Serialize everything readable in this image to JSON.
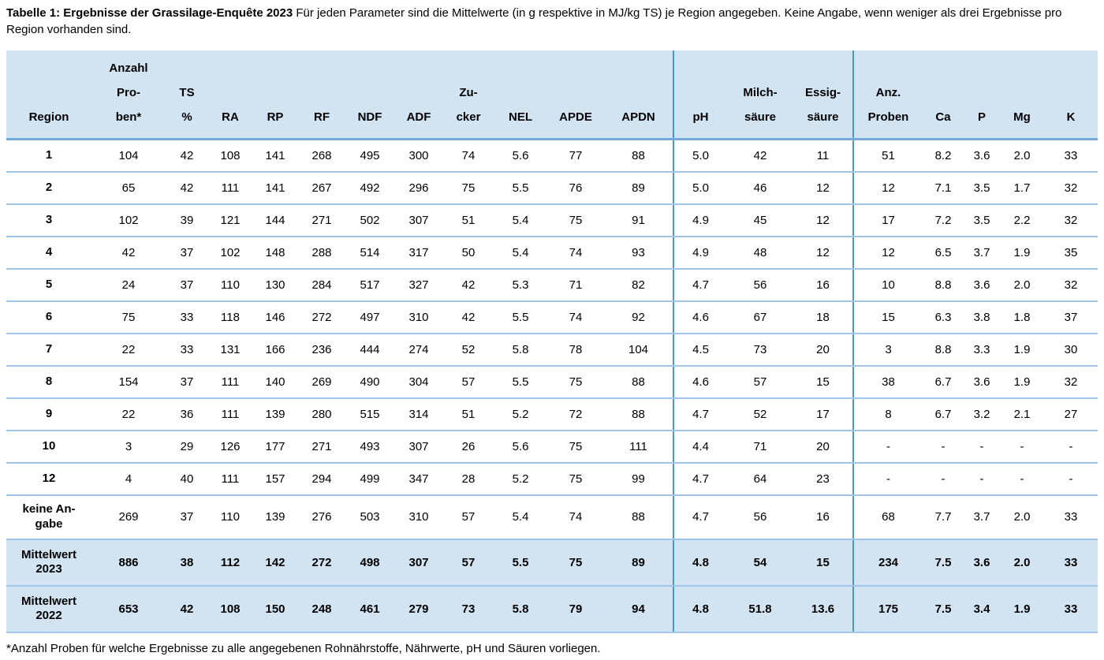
{
  "caption": {
    "bold": "Tabelle 1: Ergebnisse der Grassilage-Enquête 2023",
    "text": " Für jeden Parameter sind die Mittelwerte (in g respektive in MJ/kg TS) je Region angegeben. Keine Angabe, wenn weniger als drei Ergebnisse pro Region vorhanden sind."
  },
  "colors": {
    "header_bg": "#d2e4f2",
    "highlight_bg": "#d2e4f2",
    "row_separator": "#9fc5e8",
    "header_underline": "#74aad9",
    "group_divider": "#4e96d2"
  },
  "table": {
    "columns": [
      {
        "key": "region",
        "lines": [
          "Region"
        ]
      },
      {
        "key": "anzahl-proben",
        "lines": [
          "Anzahl",
          "Pro-",
          "ben*"
        ]
      },
      {
        "key": "ts-prozent",
        "lines": [
          "TS",
          "%"
        ]
      },
      {
        "key": "ra",
        "lines": [
          "RA"
        ]
      },
      {
        "key": "rp",
        "lines": [
          "RP"
        ]
      },
      {
        "key": "rf",
        "lines": [
          "RF"
        ]
      },
      {
        "key": "ndf",
        "lines": [
          "NDF"
        ]
      },
      {
        "key": "adf",
        "lines": [
          "ADF"
        ]
      },
      {
        "key": "zucker",
        "lines": [
          "Zu-",
          "cker"
        ]
      },
      {
        "key": "nel",
        "lines": [
          "NEL"
        ]
      },
      {
        "key": "apde",
        "lines": [
          "APDE"
        ]
      },
      {
        "key": "apdn",
        "lines": [
          "APDN"
        ]
      },
      {
        "key": "ph",
        "lines": [
          "pH"
        ],
        "group_start": true
      },
      {
        "key": "milchsaeure",
        "lines": [
          "Milch-",
          "säure"
        ]
      },
      {
        "key": "essigsaeure",
        "lines": [
          "Essig-",
          "säure"
        ]
      },
      {
        "key": "anz-proben",
        "lines": [
          "Anz.",
          "Proben"
        ],
        "group_start": true
      },
      {
        "key": "ca",
        "lines": [
          "Ca"
        ]
      },
      {
        "key": "p",
        "lines": [
          "P"
        ]
      },
      {
        "key": "mg",
        "lines": [
          "Mg"
        ]
      },
      {
        "key": "k",
        "lines": [
          "K"
        ]
      }
    ],
    "rows": [
      {
        "label_lines": [
          "1"
        ],
        "highlight": false,
        "values": [
          "104",
          "42",
          "108",
          "141",
          "268",
          "495",
          "300",
          "74",
          "5.6",
          "77",
          "88",
          "5.0",
          "42",
          "11",
          "51",
          "8.2",
          "3.6",
          "2.0",
          "33"
        ]
      },
      {
        "label_lines": [
          "2"
        ],
        "highlight": false,
        "values": [
          "65",
          "42",
          "111",
          "141",
          "267",
          "492",
          "296",
          "75",
          "5.5",
          "76",
          "89",
          "5.0",
          "46",
          "12",
          "12",
          "7.1",
          "3.5",
          "1.7",
          "32"
        ]
      },
      {
        "label_lines": [
          "3"
        ],
        "highlight": false,
        "values": [
          "102",
          "39",
          "121",
          "144",
          "271",
          "502",
          "307",
          "51",
          "5.4",
          "75",
          "91",
          "4.9",
          "45",
          "12",
          "17",
          "7.2",
          "3.5",
          "2.2",
          "32"
        ]
      },
      {
        "label_lines": [
          "4"
        ],
        "highlight": false,
        "values": [
          "42",
          "37",
          "102",
          "148",
          "288",
          "514",
          "317",
          "50",
          "5.4",
          "74",
          "93",
          "4.9",
          "48",
          "12",
          "12",
          "6.5",
          "3.7",
          "1.9",
          "35"
        ]
      },
      {
        "label_lines": [
          "5"
        ],
        "highlight": false,
        "values": [
          "24",
          "37",
          "110",
          "130",
          "284",
          "517",
          "327",
          "42",
          "5.3",
          "71",
          "82",
          "4.7",
          "56",
          "16",
          "10",
          "8.8",
          "3.6",
          "2.0",
          "32"
        ]
      },
      {
        "label_lines": [
          "6"
        ],
        "highlight": false,
        "values": [
          "75",
          "33",
          "118",
          "146",
          "272",
          "497",
          "310",
          "42",
          "5.5",
          "74",
          "92",
          "4.6",
          "67",
          "18",
          "15",
          "6.3",
          "3.8",
          "1.8",
          "37"
        ]
      },
      {
        "label_lines": [
          "7"
        ],
        "highlight": false,
        "values": [
          "22",
          "33",
          "131",
          "166",
          "236",
          "444",
          "274",
          "52",
          "5.8",
          "78",
          "104",
          "4.5",
          "73",
          "20",
          "3",
          "8.8",
          "3.3",
          "1.9",
          "30"
        ]
      },
      {
        "label_lines": [
          "8"
        ],
        "highlight": false,
        "values": [
          "154",
          "37",
          "111",
          "140",
          "269",
          "490",
          "304",
          "57",
          "5.5",
          "75",
          "88",
          "4.6",
          "57",
          "15",
          "38",
          "6.7",
          "3.6",
          "1.9",
          "32"
        ]
      },
      {
        "label_lines": [
          "9"
        ],
        "highlight": false,
        "values": [
          "22",
          "36",
          "111",
          "139",
          "280",
          "515",
          "314",
          "51",
          "5.2",
          "72",
          "88",
          "4.7",
          "52",
          "17",
          "8",
          "6.7",
          "3.2",
          "2.1",
          "27"
        ]
      },
      {
        "label_lines": [
          "10"
        ],
        "highlight": false,
        "values": [
          "3",
          "29",
          "126",
          "177",
          "271",
          "493",
          "307",
          "26",
          "5.6",
          "75",
          "111",
          "4.4",
          "71",
          "20",
          "-",
          "-",
          "-",
          "-",
          "-"
        ]
      },
      {
        "label_lines": [
          "12"
        ],
        "highlight": false,
        "values": [
          "4",
          "40",
          "111",
          "157",
          "294",
          "499",
          "347",
          "28",
          "5.2",
          "75",
          "99",
          "4.7",
          "64",
          "23",
          "-",
          "-",
          "-",
          "-",
          "-"
        ]
      },
      {
        "label_lines": [
          "keine An-",
          "gabe"
        ],
        "highlight": false,
        "values": [
          "269",
          "37",
          "110",
          "139",
          "276",
          "503",
          "310",
          "57",
          "5.4",
          "74",
          "88",
          "4.7",
          "56",
          "16",
          "68",
          "7.7",
          "3.7",
          "2.0",
          "33"
        ]
      },
      {
        "label_lines": [
          "Mittelwert",
          "2023"
        ],
        "highlight": true,
        "values": [
          "886",
          "38",
          "112",
          "142",
          "272",
          "498",
          "307",
          "57",
          "5.5",
          "75",
          "89",
          "4.8",
          "54",
          "15",
          "234",
          "7.5",
          "3.6",
          "2.0",
          "33"
        ]
      },
      {
        "label_lines": [
          "Mittelwert",
          "2022"
        ],
        "highlight": true,
        "values": [
          "653",
          "42",
          "108",
          "150",
          "248",
          "461",
          "279",
          "73",
          "5.8",
          "79",
          "94",
          "4.8",
          "51.8",
          "13.6",
          "175",
          "7.5",
          "3.4",
          "1.9",
          "33"
        ]
      }
    ]
  },
  "footnote": "*Anzahl Proben für welche Ergebnisse zu alle angegebenen Rohnährstoffe, Nährwerte, pH und Säuren vorliegen."
}
